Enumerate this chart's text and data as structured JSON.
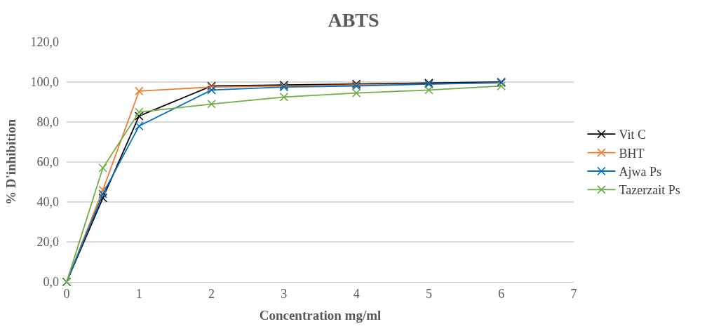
{
  "chart_data": {
    "type": "line",
    "title": "ABTS",
    "xlabel": "Concentration mg/ml",
    "ylabel": "% D'inhibition",
    "x": [
      0,
      0.5,
      1,
      2,
      3,
      4,
      5,
      6
    ],
    "series": [
      {
        "name": "Vit C",
        "color": "#000000",
        "marker": "cross",
        "values": [
          0,
          42,
          83,
          98,
          98.5,
          99,
          99.5,
          100
        ]
      },
      {
        "name": "BHT",
        "color": "#ed7d31",
        "marker": "cross",
        "values": [
          0,
          46,
          95.5,
          97.5,
          98,
          98.5,
          99,
          99.5
        ]
      },
      {
        "name": "Ajwa Ps",
        "color": "#0070c0",
        "marker": "cross",
        "values": [
          0,
          44,
          78,
          96,
          97.5,
          98,
          99,
          99.8
        ]
      },
      {
        "name": "Tazerzait Ps",
        "color": "#70ad47",
        "marker": "cross",
        "values": [
          0,
          57,
          85,
          89,
          92.5,
          94.5,
          96,
          98
        ]
      }
    ],
    "xlim": [
      0,
      7
    ],
    "xticks": [
      0,
      1,
      2,
      3,
      4,
      5,
      6,
      7
    ],
    "ylim": [
      0,
      120
    ],
    "yticks": [
      {
        "value": 0,
        "label": "0,0"
      },
      {
        "value": 20,
        "label": "20,0"
      },
      {
        "value": 40,
        "label": "40,0"
      },
      {
        "value": 60,
        "label": "60,0"
      },
      {
        "value": 80,
        "label": "80,0"
      },
      {
        "value": 100,
        "label": "100,0"
      },
      {
        "value": 120,
        "label": "120,0"
      }
    ],
    "grid": "y",
    "legend": "right",
    "line_style": "solid"
  }
}
